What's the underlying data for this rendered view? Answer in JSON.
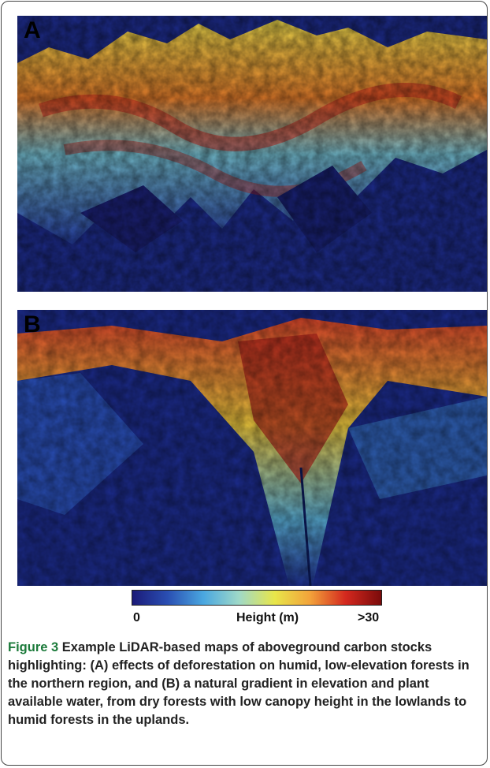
{
  "figure": {
    "panels": [
      {
        "label": "A"
      },
      {
        "label": "B"
      }
    ],
    "colorbar": {
      "min_label": "0",
      "title": "Height (m)",
      "max_label": ">30",
      "colors": [
        "#1b1a78",
        "#2a4fb3",
        "#4aa7e0",
        "#9fd9c8",
        "#e8e64a",
        "#f2a23a",
        "#d4281e",
        "#7a0b0b"
      ]
    },
    "caption": {
      "label": "Figure 3",
      "text": " Example LiDAR-based maps of aboveground carbon stocks highlighting: (A) effects of deforestation on humid, low-elevation forests in the northern region, and (B) a natural gradient in elevation and plant available water, from dry forests with low canopy height in the lowlands to humid forests in the uplands."
    }
  }
}
